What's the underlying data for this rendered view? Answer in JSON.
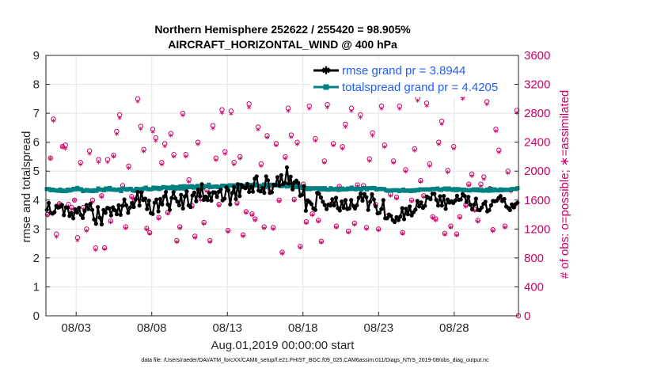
{
  "chart_data": {
    "type": "line",
    "title_line1": "Northern Hemisphere 252622 / 255420 = 98.905%",
    "title_line2": "AIRCRAFT_HORIZONTAL_WIND @ 400 hPa",
    "ylabel_left": "rmse and totalspread",
    "ylabel_right": "# of obs: o=possible; ∗=assimilated",
    "xlabel": "Aug.01,2019 00:00:00 start",
    "footnote": "data file: /Users/raeder/DAI/ATM_forcXX/CAM6_setup/f.e21.FHIST_BGC.f09_025.CAM6assim.011/Diags_NTrS_2019-08/obs_diag_output.nc",
    "ylim_left": [
      0,
      9
    ],
    "ylim_right": [
      0,
      3600
    ],
    "xlim": [
      1,
      32.25
    ],
    "yticks_left": [
      "0",
      "1",
      "2",
      "3",
      "4",
      "5",
      "6",
      "7",
      "8",
      "9"
    ],
    "yticks_right": [
      "0",
      "400",
      "800",
      "1200",
      "1600",
      "2000",
      "2400",
      "2800",
      "3200",
      "3600"
    ],
    "xticks": [
      {
        "day": 3,
        "label": "08/03"
      },
      {
        "day": 8,
        "label": "08/08"
      },
      {
        "day": 13,
        "label": "08/13"
      },
      {
        "day": 18,
        "label": "08/18"
      },
      {
        "day": 23,
        "label": "08/23"
      },
      {
        "day": 28,
        "label": "08/28"
      }
    ],
    "colors": {
      "rmse": "#000000",
      "spread": "#008080",
      "obs": "#cc0066",
      "legend_text": "#1f5fff",
      "grid": "#e4e4e4"
    },
    "series": [
      {
        "name": "rmse grand pr = 3.8944",
        "key": "rmse",
        "values": [
          3.66,
          3.9,
          3.56,
          3.53,
          3.58,
          3.8,
          3.74,
          3.77,
          3.83,
          3.48,
          3.75,
          3.74,
          3.45,
          3.56,
          3.37,
          3.68,
          3.57,
          3.73,
          3.49,
          3.38,
          3.62,
          3.83,
          3.69,
          3.87,
          3.66,
          3.33,
          3.18,
          3.76,
          3.39,
          3.16,
          3.66,
          3.56,
          3.73,
          3.71,
          3.47,
          3.75,
          3.65,
          3.51,
          3.82,
          3.49,
          3.8,
          4.02,
          3.82,
          3.56,
          3.74,
          3.9,
          3.76,
          4.03,
          4.28,
          3.81,
          4.26,
          4.0,
          4.05,
          3.69,
          3.98,
          3.55,
          3.52,
          3.91,
          4.02,
          3.61,
          4.04,
          3.85,
          4.12,
          4.28,
          3.85,
          3.66,
          4.07,
          4.27,
          4.06,
          3.95,
          3.82,
          4.18,
          3.71,
          4.12,
          4.3,
          3.82,
          3.76,
          4.16,
          4.26,
          3.96,
          4.36,
          4.13,
          4.55,
          4.01,
          4.12,
          4.0,
          4.24,
          3.98,
          4.27,
          4.26,
          4.11,
          4.29,
          4.36,
          3.99,
          4.05,
          4.44,
          4.33,
          3.85,
          4.24,
          4.45,
          4.04,
          4.55,
          4.14,
          4.52,
          4.45,
          4.41,
          4.56,
          4.28,
          4.47,
          4.29,
          4.74,
          4.82,
          4.33,
          4.3,
          4.42,
          4.25,
          4.82,
          4.68,
          4.25,
          4.27,
          4.53,
          4.52,
          4.79,
          4.5,
          4.86,
          4.55,
          4.6,
          5.13,
          4.57,
          4.81,
          4.37,
          4.61,
          4.67,
          4.59,
          4.15,
          4.18,
          4.48,
          3.63,
          3.99,
          3.93,
          3.86,
          3.71,
          3.66,
          4.25,
          4.22,
          4.09,
          3.94,
          3.83,
          3.69,
          3.84,
          3.81,
          4.03,
          3.82,
          4.08,
          3.72,
          3.64,
          3.95,
          3.73,
          4.0,
          3.69,
          3.71,
          4.0,
          3.8,
          3.71,
          3.82,
          4.08,
          4.22,
          3.98,
          4.21,
          4.1,
          3.66,
          3.94,
          4.2,
          4.02,
          3.78,
          3.54,
          3.56,
          3.69,
          4.0,
          3.37,
          3.37,
          3.5,
          3.45,
          3.31,
          3.24,
          3.41,
          3.31,
          3.43,
          3.72,
          3.34,
          3.7,
          3.51,
          3.78,
          3.47,
          3.58,
          3.67,
          3.97,
          3.78,
          3.92,
          3.73,
          3.8,
          4.12,
          4.08,
          4.03,
          4.22,
          4.22,
          4.01,
          3.81,
          4.13,
          3.81,
          4.14,
          3.7,
          4.02,
          3.91,
          3.96,
          3.9,
          3.98,
          4.15,
          4.01,
          4.02,
          4.21,
          4.14,
          3.93,
          4.11,
          3.84,
          3.68,
          3.84,
          4.05,
          3.66,
          3.65,
          3.74,
          3.87,
          3.94,
          3.61,
          3.65,
          3.82,
          3.97,
          3.96,
          3.98,
          4.07,
          4.14,
          3.97,
          4.04,
          3.78,
          3.73,
          3.65,
          3.85,
          3.75,
          3.86,
          3.91
        ]
      },
      {
        "name": "totalspread grand pr = 4.4205",
        "key": "spread",
        "values": [
          4.38,
          4.38,
          4.34,
          4.36,
          4.34,
          4.33,
          4.32,
          4.36,
          4.31,
          4.33,
          4.31,
          4.36,
          4.33,
          4.35,
          4.39,
          4.37,
          4.42,
          4.38,
          4.37,
          4.31,
          4.33,
          4.35,
          4.32,
          4.33,
          4.31,
          4.34,
          4.32,
          4.4,
          4.36,
          4.36,
          4.34,
          4.4,
          4.37,
          4.42,
          4.36,
          4.37,
          4.35,
          4.35,
          4.37,
          4.31,
          4.4,
          4.38,
          4.36,
          4.38,
          4.39,
          4.34,
          4.32,
          4.39,
          4.36,
          4.38,
          4.34,
          4.4,
          4.43,
          4.38,
          4.37,
          4.38,
          4.43,
          4.4,
          4.42,
          4.38,
          4.41,
          4.45,
          4.44,
          4.41,
          4.43,
          4.41,
          4.46,
          4.38,
          4.44,
          4.4,
          4.47,
          4.4,
          4.48,
          4.38,
          4.47,
          4.45,
          4.48,
          4.43,
          4.46,
          4.49,
          4.45,
          4.44,
          4.43,
          4.48,
          4.48,
          4.53,
          4.45,
          4.46,
          4.46,
          4.47,
          4.45,
          4.45,
          4.5,
          4.49,
          4.49,
          4.44,
          4.51,
          4.51,
          4.51,
          4.47,
          4.45,
          4.53,
          4.45,
          4.5,
          4.48,
          4.5,
          4.51,
          4.53,
          4.51,
          4.54,
          4.51,
          4.5,
          4.48,
          4.5,
          4.54,
          4.52,
          4.45,
          4.53,
          4.53,
          4.51,
          4.51,
          4.54,
          4.5,
          4.48,
          4.49,
          4.51,
          4.47,
          4.52,
          4.48,
          4.51,
          4.5,
          4.45,
          4.48,
          4.47,
          4.42,
          4.45,
          4.38,
          4.41,
          4.38,
          4.41,
          4.4,
          4.41,
          4.41,
          4.37,
          4.41,
          4.37,
          4.41,
          4.36,
          4.36,
          4.41,
          4.37,
          4.37,
          4.39,
          4.35,
          4.36,
          4.4,
          4.37,
          4.37,
          4.4,
          4.38,
          4.43,
          4.39,
          4.37,
          4.39,
          4.39,
          4.36,
          4.41,
          4.41,
          4.37,
          4.41,
          4.41,
          4.42,
          4.41,
          4.37,
          4.38,
          4.39,
          4.38,
          4.38,
          4.34,
          4.32,
          4.33,
          4.33,
          4.34,
          4.34,
          4.34,
          4.31,
          4.33,
          4.36,
          4.32,
          4.33,
          4.33,
          4.31,
          4.34,
          4.32,
          4.35,
          4.34,
          4.37,
          4.37,
          4.36,
          4.37,
          4.37,
          4.36,
          4.38,
          4.38,
          4.38,
          4.4,
          4.36,
          4.35,
          4.38,
          4.4,
          4.37,
          4.4,
          4.37,
          4.35,
          4.38,
          4.34,
          4.38,
          4.36,
          4.35,
          4.36,
          4.34,
          4.34,
          4.33,
          4.35,
          4.37,
          4.34,
          4.37,
          4.33,
          4.35,
          4.32,
          4.33,
          4.36,
          4.32,
          4.39,
          4.33,
          4.37,
          4.34,
          4.33,
          4.37,
          4.34,
          4.36,
          4.35,
          4.35,
          4.36,
          4.38,
          4.38,
          4.38,
          4.41
        ]
      }
    ],
    "obs_count": {
      "name": "# of obs",
      "possible": [
        1400,
        2180,
        2720,
        1130,
        1550,
        2340,
        2360,
        1540,
        1500,
        1600,
        1080,
        2120,
        1500,
        1200,
        2280,
        1600,
        940,
        2160,
        1660,
        940,
        2160,
        1310,
        2220,
        2550,
        2780,
        1800,
        1230,
        2070,
        1650,
        1600,
        3000,
        2620,
        2300,
        1210,
        1150,
        2580,
        2460,
        1360,
        2120,
        2380,
        1430,
        2520,
        2230,
        1040,
        1230,
        2800,
        2230,
        1880,
        1520,
        1100,
        2400,
        1620,
        1290,
        1740,
        1040,
        2630,
        2180,
        1540,
        2850,
        2270,
        1180,
        2830,
        2120,
        1560,
        2200,
        1120,
        1440,
        2930,
        1410,
        1340,
        2610,
        2100,
        1230,
        2490,
        1750,
        1220,
        2380,
        1600,
        880,
        2200,
        2870,
        2500,
        1610,
        2400,
        960,
        1820,
        1300,
        2900,
        1410,
        2450,
        1320,
        1030,
        2140,
        2920,
        1540,
        2380,
        1240,
        1790,
        2340,
        2650,
        1170,
        2870,
        1280,
        1810,
        2780,
        1800,
        1220,
        2170,
        2530,
        1540,
        1200,
        2900,
        2360,
        1380,
        1680,
        2140,
        1640,
        2900,
        1150,
        2020,
        1470,
        1600,
        2310,
        3010,
        1870,
        1660,
        2940,
        2100,
        1370,
        1340,
        2400,
        2690,
        1140,
        2010,
        1240,
        2340,
        1130,
        1370,
        3040,
        1530,
        1820,
        1960,
        1470,
        1320,
        1820,
        1920,
        2960,
        1760,
        1190,
        2580,
        2290,
        1600,
        1240,
        2000,
        1740,
        1510,
        2840
      ],
      "assimilated": [
        1400,
        2180,
        2700,
        1100,
        1550,
        2340,
        2320,
        1520,
        1480,
        1600,
        1050,
        2100,
        1480,
        1180,
        2250,
        1580,
        920,
        2130,
        1650,
        930,
        2130,
        1300,
        2210,
        2520,
        2740,
        1780,
        1220,
        2050,
        1640,
        1600,
        2970,
        2590,
        2280,
        1200,
        1140,
        2550,
        2430,
        1350,
        2100,
        2350,
        1420,
        2500,
        2210,
        1030,
        1220,
        2780,
        2210,
        1860,
        1510,
        1090,
        2380,
        1610,
        1280,
        1730,
        1030,
        2600,
        2160,
        1530,
        2810,
        2250,
        1170,
        2800,
        2100,
        1550,
        2180,
        1110,
        1430,
        2890,
        1400,
        1330,
        2580,
        2080,
        1220,
        2470,
        1740,
        1210,
        2360,
        1590,
        870,
        2180,
        2840,
        2480,
        1600,
        2380,
        950,
        1800,
        1290,
        2870,
        1400,
        2430,
        1310,
        1020,
        2120,
        2890,
        1530,
        2360,
        1230,
        1780,
        2320,
        2620,
        1160,
        2840,
        1270,
        1800,
        2750,
        1790,
        1210,
        2150,
        2500,
        1530,
        1190,
        2870,
        2340,
        1370,
        1670,
        2120,
        1630,
        2870,
        1140,
        2000,
        1460,
        1590,
        2290,
        2980,
        1860,
        1650,
        2910,
        2080,
        1360,
        1330,
        2380,
        2660,
        1130,
        1990,
        1230,
        2320,
        1120,
        1360,
        3010,
        1520,
        1810,
        1940,
        1460,
        1310,
        1800,
        1900,
        2930,
        1750,
        1180,
        2560,
        2270,
        1590,
        1230,
        1980,
        1730,
        1500,
        2810
      ]
    }
  }
}
